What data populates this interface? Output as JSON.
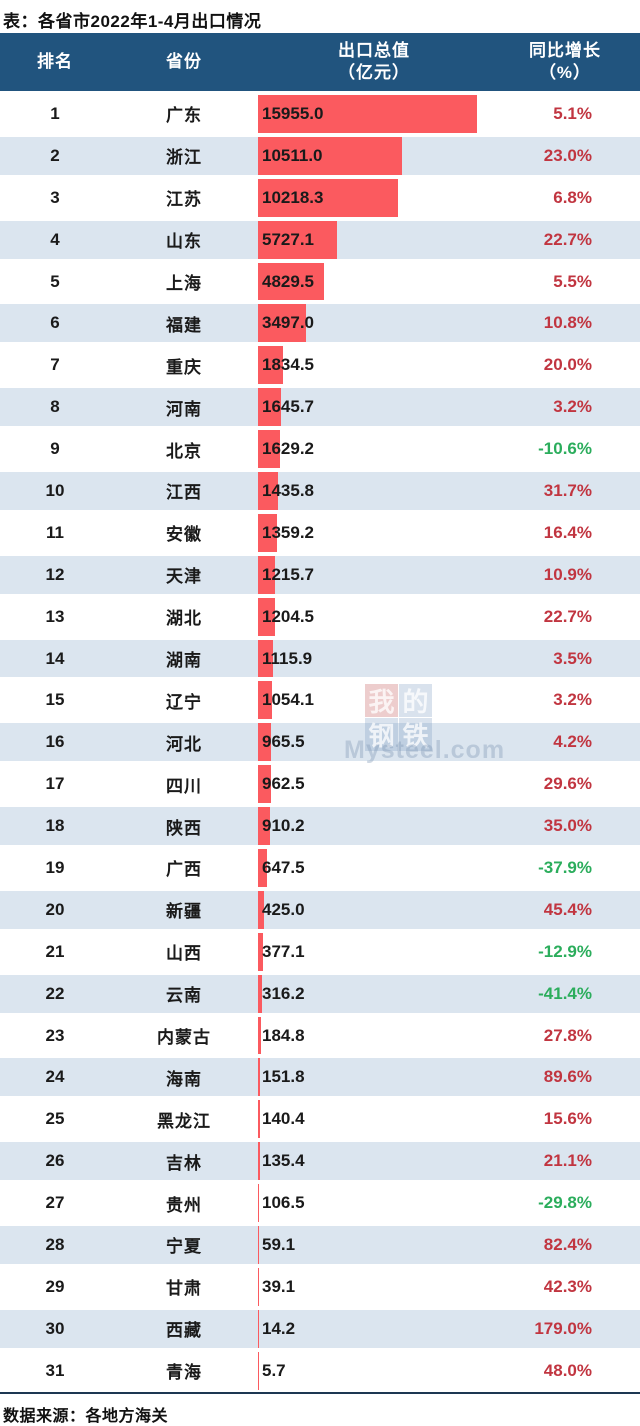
{
  "title": "表：各省市2022年1-4月出口情况",
  "header": {
    "rank": "排名",
    "province": "省份",
    "value_line1": "出口总值",
    "value_line2": "（亿元）",
    "growth_line1": "同比增长",
    "growth_line2": "（%）"
  },
  "footer": {
    "source": "数据来源：各地方海关"
  },
  "watermark": {
    "chars": [
      "我",
      "的",
      "钢",
      "铁"
    ],
    "brand": "Mysteel.com"
  },
  "colors": {
    "header_bg": "#21547e",
    "row_alt_bg": "#dbe5ef",
    "bar": "#fb5a5f",
    "growth_positive": "#c13540",
    "growth_negative": "#2bad5c"
  },
  "chart_data": {
    "type": "bar",
    "title": "各省市2022年1-4月出口情况",
    "xlabel": "出口总值（亿元）",
    "columns": [
      "排名",
      "省份",
      "出口总值（亿元）",
      "同比增长（%）"
    ],
    "source": "各地方海关",
    "rows": [
      {
        "rank": "1",
        "province": "广东",
        "value": "15955.0",
        "growth": "5.1%"
      },
      {
        "rank": "2",
        "province": "浙江",
        "value": "10511.0",
        "growth": "23.0%"
      },
      {
        "rank": "3",
        "province": "江苏",
        "value": "10218.3",
        "growth": "6.8%"
      },
      {
        "rank": "4",
        "province": "山东",
        "value": "5727.1",
        "growth": "22.7%"
      },
      {
        "rank": "5",
        "province": "上海",
        "value": "4829.5",
        "growth": "5.5%"
      },
      {
        "rank": "6",
        "province": "福建",
        "value": "3497.0",
        "growth": "10.8%"
      },
      {
        "rank": "7",
        "province": "重庆",
        "value": "1834.5",
        "growth": "20.0%"
      },
      {
        "rank": "8",
        "province": "河南",
        "value": "1645.7",
        "growth": "3.2%"
      },
      {
        "rank": "9",
        "province": "北京",
        "value": "1629.2",
        "growth": "-10.6%"
      },
      {
        "rank": "10",
        "province": "江西",
        "value": "1435.8",
        "growth": "31.7%"
      },
      {
        "rank": "11",
        "province": "安徽",
        "value": "1359.2",
        "growth": "16.4%"
      },
      {
        "rank": "12",
        "province": "天津",
        "value": "1215.7",
        "growth": "10.9%"
      },
      {
        "rank": "13",
        "province": "湖北",
        "value": "1204.5",
        "growth": "22.7%"
      },
      {
        "rank": "14",
        "province": "湖南",
        "value": "1115.9",
        "growth": "3.5%"
      },
      {
        "rank": "15",
        "province": "辽宁",
        "value": "1054.1",
        "growth": "3.2%"
      },
      {
        "rank": "16",
        "province": "河北",
        "value": "965.5",
        "growth": "4.2%"
      },
      {
        "rank": "17",
        "province": "四川",
        "value": "962.5",
        "growth": "29.6%"
      },
      {
        "rank": "18",
        "province": "陕西",
        "value": "910.2",
        "growth": "35.0%"
      },
      {
        "rank": "19",
        "province": "广西",
        "value": "647.5",
        "growth": "-37.9%"
      },
      {
        "rank": "20",
        "province": "新疆",
        "value": "425.0",
        "growth": "45.4%"
      },
      {
        "rank": "21",
        "province": "山西",
        "value": "377.1",
        "growth": "-12.9%"
      },
      {
        "rank": "22",
        "province": "云南",
        "value": "316.2",
        "growth": "-41.4%"
      },
      {
        "rank": "23",
        "province": "内蒙古",
        "value": "184.8",
        "growth": "27.8%"
      },
      {
        "rank": "24",
        "province": "海南",
        "value": "151.8",
        "growth": "89.6%"
      },
      {
        "rank": "25",
        "province": "黑龙江",
        "value": "140.4",
        "growth": "15.6%"
      },
      {
        "rank": "26",
        "province": "吉林",
        "value": "135.4",
        "growth": "21.1%"
      },
      {
        "rank": "27",
        "province": "贵州",
        "value": "106.5",
        "growth": "-29.8%"
      },
      {
        "rank": "28",
        "province": "宁夏",
        "value": "59.1",
        "growth": "82.4%"
      },
      {
        "rank": "29",
        "province": "甘肃",
        "value": "39.1",
        "growth": "42.3%"
      },
      {
        "rank": "30",
        "province": "西藏",
        "value": "14.2",
        "growth": "179.0%"
      },
      {
        "rank": "31",
        "province": "青海",
        "value": "5.7",
        "growth": "48.0%"
      }
    ]
  }
}
